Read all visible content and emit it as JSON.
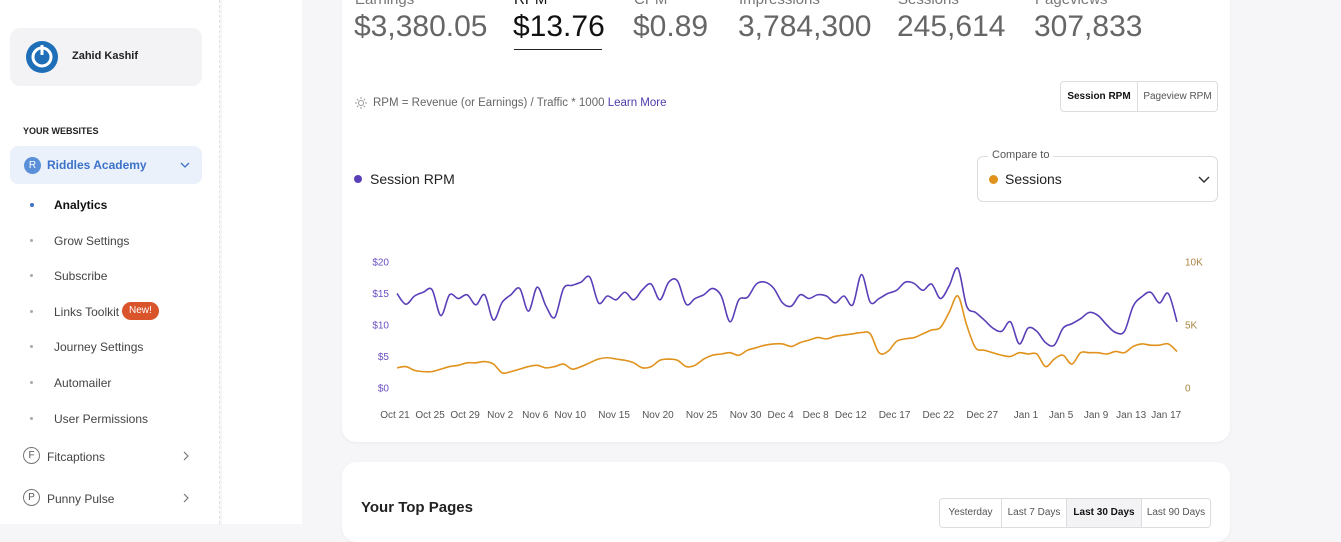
{
  "sidebar": {
    "user": "Zahid Kashif",
    "section": "YOUR WEBSITES",
    "sites": [
      {
        "initial": "R",
        "name": "Riddles Academy",
        "items": [
          "Analytics",
          "Grow Settings",
          "Subscribe",
          "Links Toolkit",
          "Journey Settings",
          "Automailer",
          "User Permissions"
        ],
        "badge": "New!"
      },
      {
        "initial": "F",
        "name": "Fitcaptions"
      },
      {
        "initial": "P",
        "name": "Punny Pulse"
      }
    ]
  },
  "metrics": [
    {
      "label": "Earnings",
      "value": "$3,380.05"
    },
    {
      "label": "RPM",
      "value": "$13.76"
    },
    {
      "label": "CPM",
      "value": "$0.89"
    },
    {
      "label": "Impressions",
      "value": "3,784,300"
    },
    {
      "label": "Sessions",
      "value": "245,614"
    },
    {
      "label": "Pageviews",
      "value": "307,833"
    }
  ],
  "formula": "RPM = Revenue (or Earnings) / Traffic * 1000",
  "learn_more": "Learn More",
  "rpm_toggle": [
    "Session RPM",
    "Pageview RPM"
  ],
  "compare_label": "Compare to",
  "chart_data": {
    "type": "line",
    "categories": [
      "Oct 21",
      null,
      null,
      null,
      "Oct 25",
      null,
      null,
      null,
      "Oct 29",
      null,
      null,
      null,
      "Nov 2",
      null,
      null,
      null,
      "Nov 6",
      null,
      null,
      null,
      "Nov 10",
      null,
      null,
      null,
      null,
      "Nov 15",
      null,
      null,
      null,
      null,
      "Nov 20",
      null,
      null,
      null,
      null,
      "Nov 25",
      null,
      null,
      null,
      null,
      "Nov 30",
      null,
      null,
      null,
      "Dec 4",
      null,
      null,
      null,
      "Dec 8",
      null,
      null,
      null,
      "Dec 12",
      null,
      null,
      null,
      null,
      "Dec 17",
      null,
      null,
      null,
      null,
      "Dec 22",
      null,
      null,
      null,
      null,
      "Dec 27",
      null,
      null,
      null,
      null,
      "Jan 1",
      null,
      null,
      null,
      "Jan 5",
      null,
      null,
      null,
      "Jan 9",
      null,
      null,
      null,
      "Jan 13",
      null,
      null,
      null,
      "Jan 17",
      null
    ],
    "series": [
      {
        "name": "Session RPM",
        "color": "#5b3fb8",
        "values": [
          15.0,
          13.3,
          14.6,
          15.2,
          15.6,
          11.5,
          14.8,
          14.2,
          14.8,
          13.2,
          14.8,
          10.8,
          13.6,
          14.8,
          15.8,
          12.2,
          16.0,
          13.0,
          11.2,
          15.8,
          16.3,
          16.8,
          17.6,
          13.5,
          14.6,
          14.0,
          15.2,
          14.0,
          15.6,
          16.5,
          14.0,
          16.8,
          17.0,
          13.3,
          14.2,
          14.8,
          15.8,
          14.6,
          10.5,
          14.0,
          14.4,
          16.5,
          16.8,
          15.8,
          13.5,
          13.0,
          14.8,
          14.2,
          14.8,
          14.6,
          13.5,
          14.6,
          13.2,
          18.0,
          13.6,
          14.2,
          15.0,
          15.5,
          16.8,
          16.6,
          15.5,
          16.5,
          14.2,
          16.2,
          19.0,
          13.0,
          12.0,
          10.8,
          9.5,
          9.0,
          10.5,
          7.0,
          9.5,
          9.0,
          7.2,
          6.8,
          9.5,
          10.2,
          11.0,
          12.0,
          11.5,
          10.0,
          8.8,
          9.0,
          13.0,
          14.5,
          15.2,
          13.5,
          15.0,
          10.5
        ]
      },
      {
        "name": "Sessions",
        "color": "#e0921c",
        "axis": "y2",
        "values": [
          1600,
          1700,
          1400,
          1300,
          1300,
          1500,
          1700,
          1800,
          2000,
          2000,
          2100,
          1900,
          1200,
          1300,
          1500,
          1700,
          1800,
          1600,
          1700,
          1900,
          1500,
          1700,
          2000,
          2300,
          2400,
          2300,
          2200,
          2000,
          1600,
          1700,
          2200,
          2300,
          2200,
          1700,
          1800,
          2300,
          2600,
          2700,
          2800,
          2600,
          3000,
          3200,
          3400,
          3500,
          3500,
          3300,
          3600,
          3800,
          4000,
          3900,
          4100,
          4200,
          4300,
          4400,
          4300,
          2800,
          2900,
          3700,
          3900,
          4000,
          4300,
          4600,
          4800,
          6000,
          7300,
          5000,
          3200,
          3000,
          2800,
          2600,
          2500,
          2800,
          2700,
          2700,
          1700,
          2300,
          2600,
          1900,
          2800,
          2800,
          2800,
          2700,
          2900,
          2800,
          3300,
          3500,
          3400,
          3400,
          3500,
          2900
        ]
      }
    ],
    "ylim": [
      0,
      20
    ],
    "yticks": [
      {
        "value": 0,
        "label": "$0"
      },
      {
        "value": 5,
        "label": "$5"
      },
      {
        "value": 10,
        "label": "$10"
      },
      {
        "value": 15,
        "label": "$15"
      },
      {
        "value": 20,
        "label": "$20"
      }
    ],
    "y2lim": [
      0,
      10000
    ],
    "y2ticks": [
      0,
      {
        "value": 5000,
        "label": "5K"
      },
      {
        "value": 10000,
        "label": "10K"
      }
    ],
    "grid": false
  },
  "top_pages": {
    "title": "Your Top Pages",
    "ranges": [
      "Yesterday",
      "Last 7 Days",
      "Last 30 Days",
      "Last 90 Days"
    ]
  }
}
